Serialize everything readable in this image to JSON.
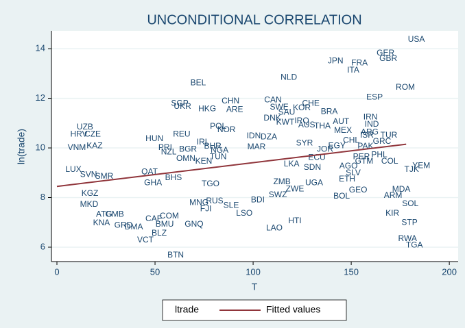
{
  "chart_data": {
    "type": "scatter",
    "title": "UNCONDITIONAL CORRELATION",
    "x_label": "T",
    "y_label": "ln(trade)",
    "xlim": [
      -2.8,
      204.5
    ],
    "ylim": [
      5.42,
      14.72
    ],
    "xticks": [
      0,
      50,
      100,
      150,
      200
    ],
    "yticks": [
      6,
      8,
      10,
      12,
      14
    ],
    "grid": true,
    "legend": "bottom",
    "series": [
      {
        "name": "ltrade",
        "color": "#1a476f",
        "labels": [
          "USA",
          "GER",
          "GBR",
          "JPN",
          "FRA",
          "ITA",
          "NLD",
          "BEL",
          "ROM",
          "ESP",
          "SGP",
          "UKR",
          "CHN",
          "HKG",
          "ARE",
          "CAN",
          "CHE",
          "SWE",
          "KOR",
          "SAU",
          "BRA",
          "DNK",
          "KWT",
          "IRQ",
          "IRN",
          "IND",
          "AUT",
          "AUS",
          "THA",
          "MEX",
          "ARG",
          "TUR",
          "ISR",
          "GRC",
          "UZB",
          "HRV",
          "CZE",
          "POL",
          "NOR",
          "IDN",
          "DZA",
          "HUN",
          "REU",
          "IRL",
          "BHR",
          "MAR",
          "SYR",
          "VNM",
          "KAZ",
          "PRI",
          "BGR",
          "NZL",
          "OMN",
          "KEN",
          "TUN",
          "NGA",
          "JOR",
          "EGY",
          "CHL",
          "PAK",
          "PER",
          "PHL",
          "COL",
          "GTM",
          "YEM",
          "TJK",
          "ECU",
          "LKA",
          "SDN",
          "AGO",
          "SLV",
          "LUX",
          "SVN",
          "SMR",
          "QAT",
          "GHA",
          "BHS",
          "ZMB",
          "UGA",
          "ETH",
          "TGO",
          "SWZ",
          "ZWE",
          "GEO",
          "BOL",
          "MDA",
          "ARM",
          "SOL",
          "RUS",
          "FJI",
          "BDI",
          "SLE",
          "LSO",
          "GNQ",
          "BMU",
          "BLZ",
          "VCT",
          "BTN",
          "LAO",
          "HTI",
          "KNA",
          "GRD",
          "DMA",
          "MKD",
          "ATG",
          "GMB",
          "COM",
          "CAF",
          "MNG",
          "KIR",
          "STP",
          "RWA",
          "TGA",
          "KGZ"
        ],
        "x": [
          183.2,
          167.5,
          168.9,
          142.0,
          154.2,
          151.0,
          118.2,
          72.0,
          177.6,
          161.9,
          62.6,
          64.0,
          88.5,
          76.6,
          90.6,
          110.1,
          129.4,
          113.3,
          124.8,
          117.1,
          138.8,
          109.8,
          116.4,
          124.8,
          159.8,
          160.5,
          144.8,
          127.3,
          135.3,
          145.8,
          159.4,
          169.2,
          158.0,
          165.7,
          14.3,
          11.2,
          18.2,
          82.2,
          86.4,
          100.3,
          108.0,
          49.7,
          63.6,
          74.5,
          79.4,
          101.7,
          126.2,
          10.1,
          19.2,
          55.2,
          66.8,
          57.0,
          65.7,
          74.8,
          82.2,
          82.9,
          136.7,
          142.7,
          150.0,
          157.3,
          155.2,
          164.3,
          169.6,
          156.6,
          185.7,
          180.8,
          132.5,
          119.6,
          130.2,
          148.6,
          151.0,
          8.4,
          16.1,
          24.1,
          47.2,
          49.0,
          59.4,
          114.7,
          131.1,
          147.9,
          78.3,
          112.6,
          121.3,
          153.5,
          145.1,
          175.5,
          171.3,
          180.1,
          80.4,
          75.9,
          102.4,
          88.8,
          95.5,
          69.9,
          54.9,
          52.1,
          45.1,
          60.5,
          110.8,
          121.3,
          22.7,
          33.9,
          39.2,
          16.4,
          24.1,
          29.4,
          57.3,
          49.3,
          72.4,
          171.0,
          179.7,
          178.7,
          182.2,
          16.8
        ],
        "values": [
          14.36,
          13.81,
          13.59,
          13.5,
          13.42,
          13.12,
          12.84,
          12.62,
          12.43,
          12.04,
          11.79,
          11.66,
          11.88,
          11.57,
          11.54,
          11.93,
          11.79,
          11.63,
          11.6,
          11.43,
          11.46,
          11.19,
          11.02,
          11.08,
          11.24,
          10.94,
          11.05,
          10.91,
          10.88,
          10.69,
          10.63,
          10.5,
          10.5,
          10.25,
          10.83,
          10.55,
          10.55,
          10.86,
          10.72,
          10.47,
          10.44,
          10.36,
          10.55,
          10.22,
          10.06,
          10.03,
          10.19,
          10.0,
          10.08,
          10.0,
          9.94,
          9.83,
          9.56,
          9.45,
          9.64,
          9.89,
          9.94,
          10.08,
          10.3,
          10.06,
          9.64,
          9.72,
          9.45,
          9.45,
          9.28,
          9.12,
          9.61,
          9.34,
          9.2,
          9.26,
          8.98,
          9.12,
          8.92,
          8.84,
          9.03,
          8.59,
          8.79,
          8.62,
          8.59,
          8.73,
          8.54,
          8.1,
          8.34,
          8.29,
          8.04,
          8.32,
          8.07,
          7.74,
          7.85,
          7.54,
          7.9,
          7.68,
          7.35,
          6.91,
          6.91,
          6.55,
          6.28,
          5.67,
          6.77,
          7.05,
          6.97,
          6.88,
          6.8,
          7.71,
          7.32,
          7.32,
          7.24,
          7.13,
          7.79,
          7.35,
          6.99,
          6.33,
          6.08,
          8.15
        ]
      },
      {
        "name": "Fitted values",
        "color": "#90353b",
        "x": [
          0,
          178
        ],
        "values": [
          8.45,
          10.15
        ]
      }
    ]
  }
}
